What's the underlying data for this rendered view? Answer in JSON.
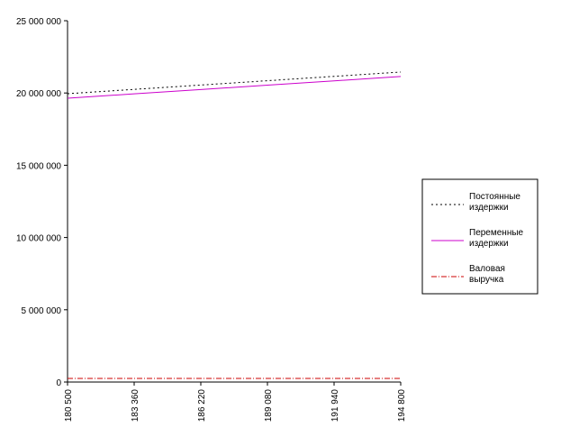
{
  "chart_data": {
    "type": "line",
    "categories": [
      "180 500",
      "183 360",
      "186 220",
      "189 080",
      "191 940",
      "194 800"
    ],
    "series": [
      {
        "name": "Постоянные издержки",
        "color": "#000000",
        "dash": "2,3",
        "values": [
          19950000,
          20250000,
          20550000,
          20850000,
          21150000,
          21450000
        ]
      },
      {
        "name": "Переменные издержки",
        "color": "#cc00cc",
        "dash": "none",
        "values": [
          19640000,
          19940000,
          20240000,
          20540000,
          20840000,
          21140000
        ]
      },
      {
        "name": "Валовая выручка",
        "color": "#cc0000",
        "dash": "6,2,1,2",
        "values": [
          250000,
          250000,
          250000,
          250000,
          250000,
          250000
        ]
      }
    ],
    "ylim": [
      0,
      25000000
    ],
    "yticks": [
      0,
      {
        "value": 5000000,
        "label": "5 000 000"
      },
      {
        "value": 10000000,
        "label": "10 000 000"
      },
      {
        "value": 15000000,
        "label": "15 000 000"
      },
      {
        "value": 20000000,
        "label": "20 000 000"
      },
      {
        "value": 25000000,
        "label": "25 000 000"
      }
    ],
    "legend": "right"
  }
}
